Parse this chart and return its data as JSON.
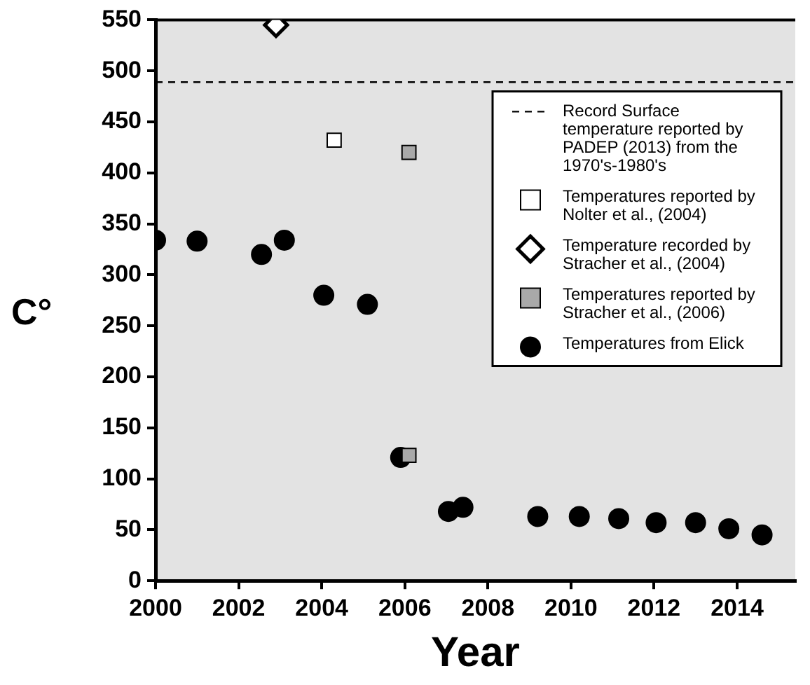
{
  "chart_data": {
    "type": "scatter",
    "xlabel": "Year",
    "ylabel": "C°",
    "xlim": [
      2000,
      2015.4
    ],
    "xticks": [
      2000,
      2002,
      2004,
      2006,
      2008,
      2010,
      2012,
      2014
    ],
    "ylim": [
      0,
      550
    ],
    "yticks": [
      0,
      50,
      100,
      150,
      200,
      250,
      300,
      350,
      400,
      450,
      500,
      550
    ],
    "grid": false,
    "legend": "top right",
    "ref_lines": [
      {
        "axis": "y",
        "value": 489,
        "label": "Record Surface temperature reported by PADEP (2013) from the 1970's-1980's",
        "color": "#000000",
        "line_style": "dashed"
      }
    ],
    "series": [
      {
        "name": "Temperatures reported by Nolter et al., (2004)",
        "color": "#ffffff",
        "marker": "square",
        "x": [
          2004.3
        ],
        "values": [
          432
        ]
      },
      {
        "name": "Temperature recorded by Stracher et al., (2004)",
        "color": "#ffffff",
        "marker": "diamond",
        "x": [
          2002.9
        ],
        "values": [
          545
        ]
      },
      {
        "name": "Temperatures reported by Stracher et al., (2006)",
        "color": "#a9a9a9",
        "marker": "square",
        "x": [
          2006.1,
          2006.1
        ],
        "values": [
          420,
          123
        ]
      },
      {
        "name": "Temperatures from Elick",
        "color": "#000000",
        "marker": "circle",
        "x": [
          2000,
          2001,
          2002.55,
          2003.1,
          2004.05,
          2005.1,
          2005.9,
          2007.05,
          2007.4,
          2009.2,
          2010.2,
          2011.15,
          2012.05,
          2013,
          2013.8,
          2014.6
        ],
        "values": [
          334,
          333,
          320,
          334,
          280,
          271,
          121,
          68,
          72,
          63,
          63,
          61,
          57,
          57,
          51,
          45
        ]
      }
    ]
  }
}
